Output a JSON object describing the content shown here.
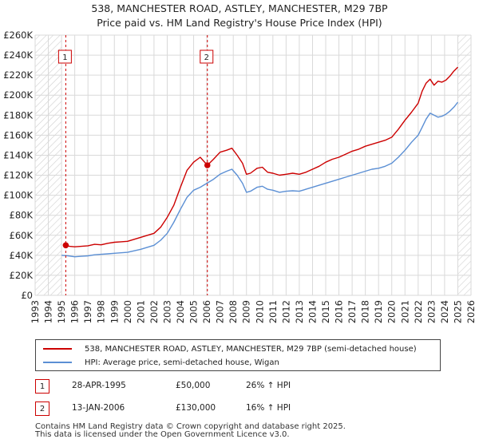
{
  "title": {
    "line1": "538, MANCHESTER ROAD, ASTLEY, MANCHESTER, M29 7BP",
    "line2": "Price paid vs. HM Land Registry's House Price Index (HPI)"
  },
  "colors": {
    "property": "#cc0000",
    "hpi": "#5b8fd4",
    "grid": "#d9d9d9",
    "hatch": "#cfcfcf"
  },
  "chart_data": {
    "type": "line",
    "title": "Price paid vs. HM Land Registry's House Price Index (HPI)",
    "xlabel": "",
    "ylabel": "",
    "xlim": [
      1993,
      2026
    ],
    "ylim": [
      0,
      260000
    ],
    "x_ticks": [
      1993,
      1994,
      1995,
      1996,
      1997,
      1998,
      1999,
      2000,
      2001,
      2002,
      2003,
      2004,
      2005,
      2006,
      2007,
      2008,
      2009,
      2010,
      2011,
      2012,
      2013,
      2014,
      2015,
      2016,
      2017,
      2018,
      2019,
      2020,
      2021,
      2022,
      2023,
      2024,
      2025,
      2026
    ],
    "y_ticks": [
      {
        "value": 0,
        "label": "£0"
      },
      {
        "value": 20000,
        "label": "£20K"
      },
      {
        "value": 40000,
        "label": "£40K"
      },
      {
        "value": 60000,
        "label": "£60K"
      },
      {
        "value": 80000,
        "label": "£80K"
      },
      {
        "value": 100000,
        "label": "£100K"
      },
      {
        "value": 120000,
        "label": "£120K"
      },
      {
        "value": 140000,
        "label": "£140K"
      },
      {
        "value": 160000,
        "label": "£160K"
      },
      {
        "value": 180000,
        "label": "£180K"
      },
      {
        "value": 200000,
        "label": "£200K"
      },
      {
        "value": 220000,
        "label": "£220K"
      },
      {
        "value": 240000,
        "label": "£240K"
      },
      {
        "value": 260000,
        "label": "£260K"
      }
    ],
    "hatched_ranges": [
      [
        1993,
        1995.0
      ],
      [
        2025.0,
        2026
      ]
    ],
    "series": [
      {
        "name": "538, MANCHESTER ROAD, ASTLEY, MANCHESTER, M29 7BP (semi-detached house)",
        "color": "#cc0000",
        "x": [
          1995.32,
          1995.6,
          1996.0,
          1996.5,
          1997.0,
          1997.5,
          1998.0,
          1998.5,
          1999.0,
          1999.5,
          2000.0,
          2000.5,
          2001.0,
          2001.5,
          2002.0,
          2002.5,
          2003.0,
          2003.5,
          2004.0,
          2004.5,
          2005.0,
          2005.5,
          2006.04,
          2006.5,
          2007.0,
          2007.5,
          2007.9,
          2008.3,
          2008.7,
          2009.0,
          2009.3,
          2009.8,
          2010.2,
          2010.6,
          2011.0,
          2011.5,
          2012.0,
          2012.5,
          2013.0,
          2013.5,
          2014.0,
          2014.5,
          2015.0,
          2015.5,
          2016.0,
          2016.5,
          2017.0,
          2017.5,
          2018.0,
          2018.5,
          2019.0,
          2019.5,
          2020.0,
          2020.5,
          2021.0,
          2021.5,
          2022.0,
          2022.3,
          2022.6,
          2022.9,
          2023.2,
          2023.5,
          2023.8,
          2024.1,
          2024.4,
          2024.7,
          2025.0
        ],
        "y": [
          50000,
          49000,
          48500,
          49000,
          49500,
          51000,
          50500,
          52000,
          53000,
          53500,
          54000,
          56000,
          58000,
          60000,
          62000,
          68000,
          78000,
          90000,
          108000,
          125000,
          133000,
          138000,
          130000,
          136000,
          143000,
          145000,
          147000,
          140000,
          132000,
          121000,
          122000,
          127000,
          128000,
          123000,
          122000,
          120000,
          121000,
          122000,
          121000,
          123000,
          126000,
          129000,
          133000,
          136000,
          138000,
          141000,
          144000,
          146000,
          149000,
          151000,
          153000,
          155000,
          158000,
          166000,
          175000,
          183000,
          192000,
          204000,
          212000,
          216000,
          210000,
          214000,
          213000,
          215000,
          219000,
          224000,
          228000
        ]
      },
      {
        "name": "HPI: Average price, semi-detached house, Wigan",
        "color": "#5b8fd4",
        "x": [
          1995.0,
          1995.5,
          1996.0,
          1996.5,
          1997.0,
          1997.5,
          1998.0,
          1998.5,
          1999.0,
          1999.5,
          2000.0,
          2000.5,
          2001.0,
          2001.5,
          2002.0,
          2002.5,
          2003.0,
          2003.5,
          2004.0,
          2004.5,
          2005.0,
          2005.5,
          2006.0,
          2006.5,
          2007.0,
          2007.5,
          2007.9,
          2008.3,
          2008.7,
          2009.0,
          2009.3,
          2009.8,
          2010.2,
          2010.6,
          2011.0,
          2011.5,
          2012.0,
          2012.5,
          2013.0,
          2013.5,
          2014.0,
          2014.5,
          2015.0,
          2015.5,
          2016.0,
          2016.5,
          2017.0,
          2017.5,
          2018.0,
          2018.5,
          2019.0,
          2019.5,
          2020.0,
          2020.5,
          2021.0,
          2021.5,
          2022.0,
          2022.3,
          2022.6,
          2022.9,
          2023.2,
          2023.5,
          2023.8,
          2024.1,
          2024.4,
          2024.7,
          2025.0
        ],
        "y": [
          40000,
          39500,
          38500,
          39000,
          39500,
          40500,
          41000,
          41500,
          42000,
          42500,
          43000,
          44500,
          46000,
          48000,
          50000,
          55000,
          62000,
          73000,
          86000,
          98000,
          105000,
          108000,
          112000,
          116000,
          121000,
          124000,
          126000,
          120000,
          112000,
          103000,
          104000,
          108000,
          109000,
          106000,
          105000,
          103000,
          104000,
          104500,
          104000,
          106000,
          108000,
          110000,
          112000,
          114000,
          116000,
          118000,
          120000,
          122000,
          124000,
          126000,
          127000,
          129000,
          132000,
          138000,
          145000,
          153000,
          160000,
          168000,
          176000,
          182000,
          180000,
          178000,
          179000,
          181000,
          184000,
          188000,
          193000
        ]
      }
    ],
    "sales": [
      {
        "label": "1",
        "x": 1995.32,
        "price": 50000
      },
      {
        "label": "2",
        "x": 2006.04,
        "price": 130000
      }
    ]
  },
  "legend": {
    "property_label": "538, MANCHESTER ROAD, ASTLEY, MANCHESTER, M29 7BP (semi-detached house)",
    "hpi_label": "HPI: Average price, semi-detached house, Wigan"
  },
  "sales_table": [
    {
      "num": "1",
      "date": "28-APR-1995",
      "price": "£50,000",
      "hpi": "26% ↑ HPI"
    },
    {
      "num": "2",
      "date": "13-JAN-2006",
      "price": "£130,000",
      "hpi": "16% ↑ HPI"
    }
  ],
  "footer": {
    "line1": "Contains HM Land Registry data © Crown copyright and database right 2025.",
    "line2": "This data is licensed under the Open Government Licence v3.0."
  }
}
